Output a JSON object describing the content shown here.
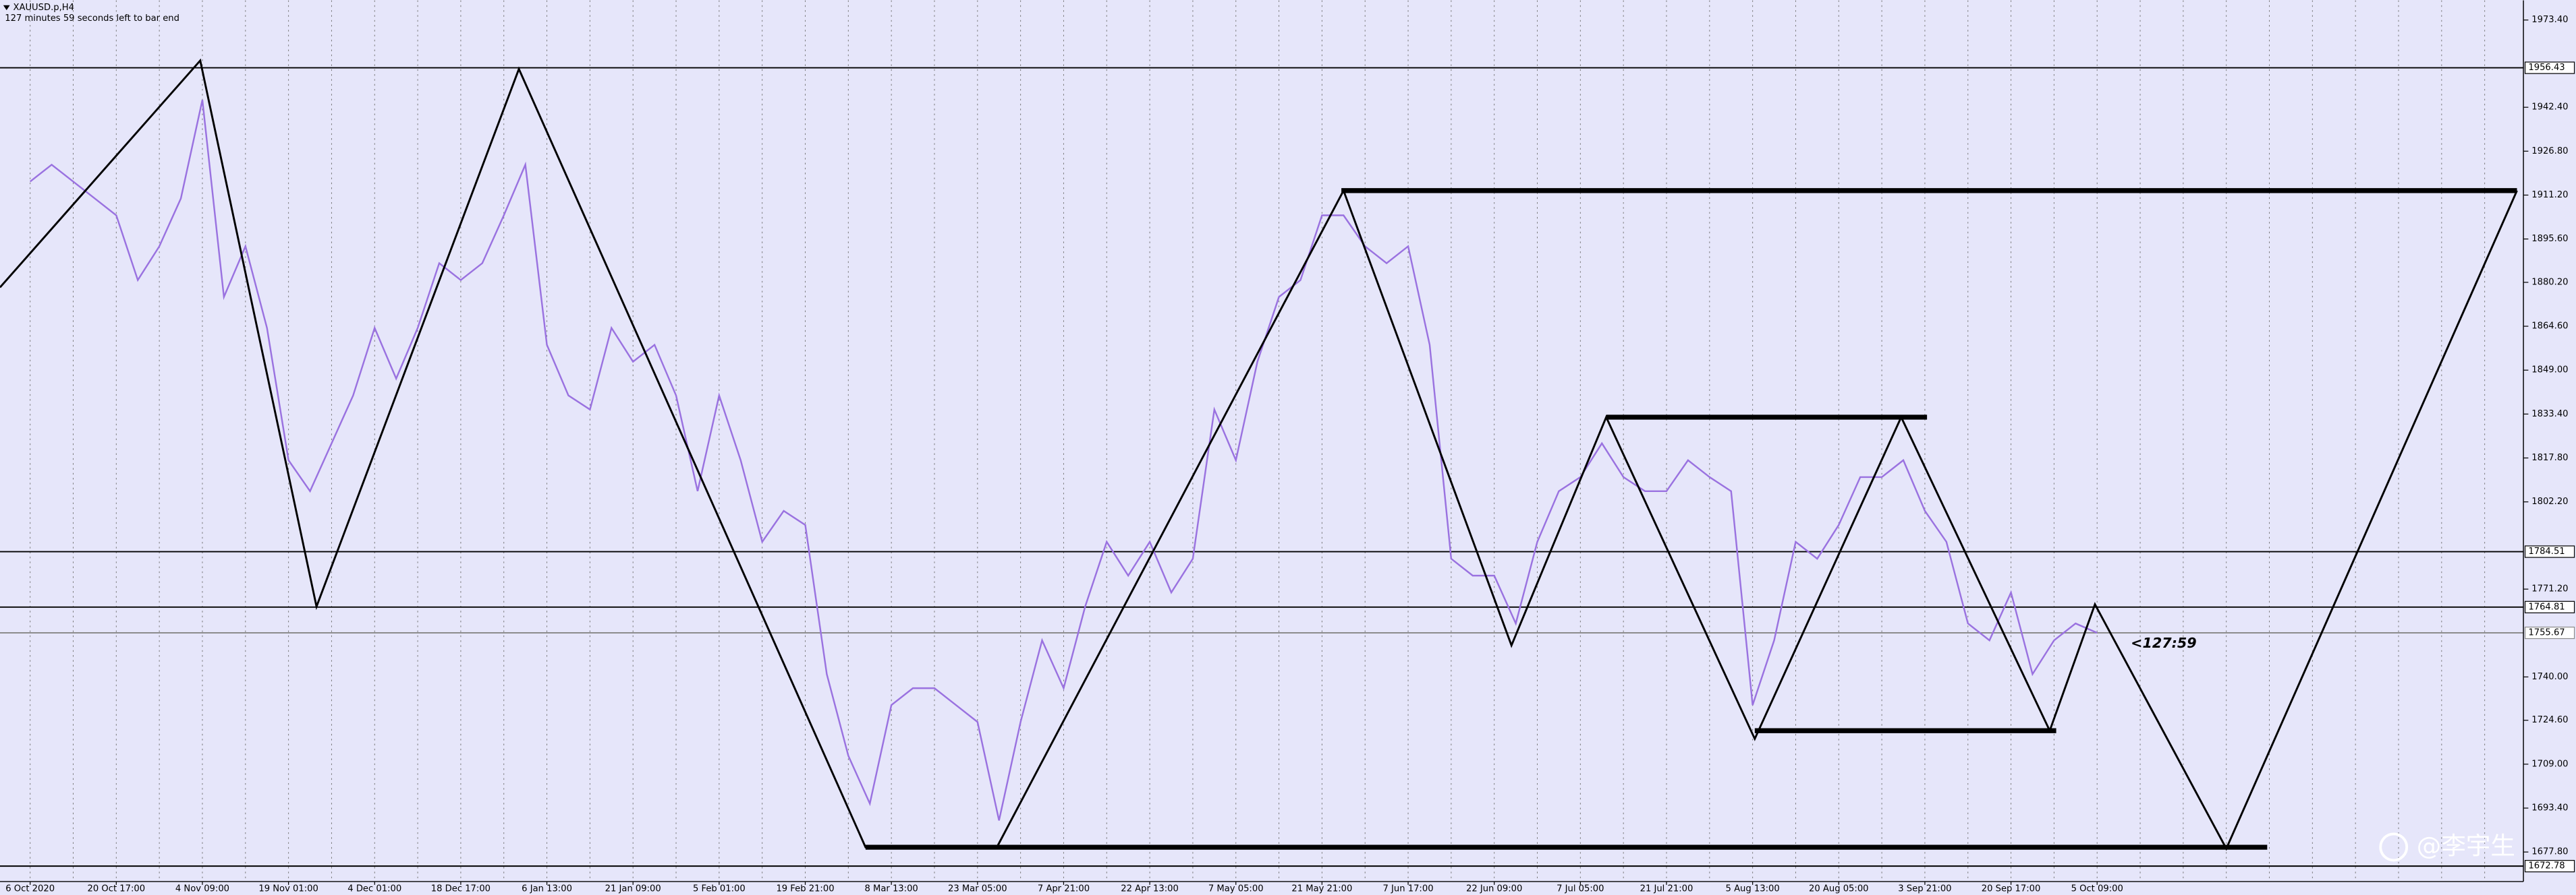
{
  "chart_data": {
    "type": "line",
    "title": "XAUUSD.p,H4",
    "subtitle": "127 minutes 59 seconds left to bar end",
    "categories": [
      "6 Oct 2020",
      null,
      null,
      null,
      "20 Oct 17:00",
      null,
      null,
      null,
      "4 Nov 09:00",
      null,
      null,
      null,
      "19 Nov 01:00",
      null,
      null,
      null,
      "4 Dec 01:00",
      null,
      null,
      null,
      "18 Dec 17:00",
      null,
      null,
      null,
      "6 Jan 13:00",
      null,
      null,
      null,
      "21 Jan 09:00",
      null,
      null,
      null,
      "5 Feb 01:00",
      null,
      null,
      null,
      "19 Feb 21:00",
      null,
      null,
      null,
      "8 Mar 13:00",
      null,
      null,
      null,
      "23 Mar 05:00",
      null,
      null,
      null,
      "7 Apr 21:00",
      null,
      null,
      null,
      "22 Apr 13:00",
      null,
      null,
      null,
      "7 May 05:00",
      null,
      null,
      null,
      "21 May 21:00",
      null,
      null,
      null,
      "7 Jun 17:00",
      null,
      null,
      null,
      "22 Jun 09:00",
      null,
      null,
      null,
      "7 Jul 05:00",
      null,
      null,
      null,
      "21 Jul 21:00",
      null,
      null,
      null,
      "5 Aug 13:00",
      null,
      null,
      null,
      "20 Aug 05:00",
      null,
      null,
      null,
      "3 Sep 21:00",
      null,
      null,
      null,
      "20 Sep 17:00",
      null,
      null,
      null,
      "5 Oct 09:00",
      null,
      null,
      null,
      null,
      null,
      null,
      null,
      null,
      null,
      null,
      null,
      null,
      null,
      null,
      null,
      null,
      null,
      null,
      null,
      null
    ],
    "series": [
      {
        "color": "#9a72e0",
        "values": [
          1916,
          1922,
          1916,
          1910,
          1904,
          1881,
          1893,
          1910,
          1945,
          1875,
          1893,
          1864,
          1817,
          1806,
          1823,
          1840,
          1864,
          1846,
          1864,
          1887,
          1881,
          1887,
          1904,
          1922,
          1858,
          1840,
          1835,
          1864,
          1852,
          1858,
          1840,
          1806,
          1840,
          1817,
          1788,
          1799,
          1794,
          1741,
          1712,
          1695,
          1730,
          1736,
          1736,
          1730,
          1724,
          1689,
          1724,
          1753,
          1736,
          1765,
          1788,
          1776,
          1788,
          1770,
          1782,
          1835,
          1817,
          1852,
          1875,
          1881,
          1904,
          1904,
          1893,
          1887,
          1893,
          1858,
          1782,
          1776,
          1776,
          1759,
          1788,
          1806,
          1811,
          1823,
          1811,
          1806,
          1806,
          1817,
          1811,
          1806,
          1730,
          1753,
          1788,
          1782,
          1794,
          1811,
          1811,
          1817,
          1799,
          1788,
          1759,
          1753,
          1770,
          1741,
          1753,
          1759,
          1755.67,
          null,
          null,
          null,
          null,
          null,
          null,
          null,
          null,
          null,
          null,
          null,
          null,
          null,
          null,
          null,
          null,
          null,
          null,
          null,
          null
        ]
      }
    ],
    "zigzag": {
      "color": "#000000",
      "x": [
        -1.4,
        7.9,
        13.3,
        22.7,
        38.8,
        44.9,
        61.0,
        68.8,
        73.2,
        80.1,
        86.9,
        93.8,
        95.9,
        102.0,
        115.5
      ],
      "values": [
        1878.4,
        1959,
        1765,
        1956,
        1679.5,
        1679.5,
        1912.8,
        1751.2,
        1832.3,
        1718,
        1832.3,
        1720.9,
        1765.8,
        1679,
        1912.8
      ]
    },
    "segments": [
      {
        "x": [
          60.9,
          115.5
        ],
        "value": 1912.8
      },
      {
        "x": [
          73.2,
          88.1
        ],
        "value": 1832.3
      },
      {
        "x": [
          80.1,
          94.1
        ],
        "value": 1720.9
      },
      {
        "x": [
          38.8,
          103.9
        ],
        "value": 1679.5
      }
    ],
    "levels": [
      {
        "value": 1956.43,
        "color": "#000000"
      },
      {
        "value": 1784.51,
        "color": "#000000"
      },
      {
        "value": 1764.81,
        "color": "#000000"
      },
      {
        "value": 1755.67,
        "color": "#8c8c8c"
      },
      {
        "value": 1672.78,
        "color": "#000000"
      }
    ],
    "countdown": "<127:59",
    "watermark": "@李宇生",
    "xlim": [
      -1.4,
      115.8
    ],
    "ylim": [
      1667.3,
      1980.4
    ],
    "yticks": [
      {
        "value": 1973.4,
        "label": "1973.40"
      },
      {
        "value": 1942.4,
        "label": "1942.40"
      },
      {
        "value": 1926.8,
        "label": "1926.80"
      },
      {
        "value": 1911.2,
        "label": "1911.20"
      },
      {
        "value": 1895.6,
        "label": "1895.60"
      },
      {
        "value": 1880.2,
        "label": "1880.20"
      },
      {
        "value": 1864.6,
        "label": "1864.60"
      },
      {
        "value": 1849,
        "label": "1849.00"
      },
      {
        "value": 1833.4,
        "label": "1833.40"
      },
      {
        "value": 1817.8,
        "label": "1817.80"
      },
      {
        "value": 1802.2,
        "label": "1802.20"
      },
      {
        "value": 1771.2,
        "label": "1771.20"
      },
      {
        "value": 1740,
        "label": "1740.00"
      },
      {
        "value": 1724.6,
        "label": "1724.60"
      },
      {
        "value": 1709,
        "label": "1709.00"
      },
      {
        "value": 1693.4,
        "label": "1693.40"
      },
      {
        "value": 1677.8,
        "label": "1677.80"
      }
    ],
    "grid": true
  }
}
